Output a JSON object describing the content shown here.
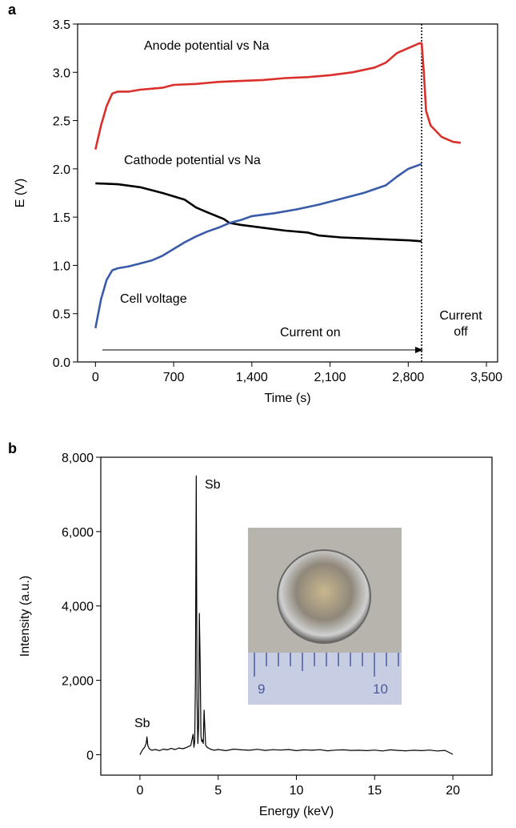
{
  "chart_data": [
    {
      "type": "line",
      "panel": "a",
      "xlabel": "Time (s)",
      "ylabel": "E (V)",
      "xlim": [
        -160,
        3600
      ],
      "ylim": [
        0,
        3.5
      ],
      "xticks": [
        0,
        700,
        {
          "value": 1400,
          "label": "1,400"
        },
        {
          "value": 2100,
          "label": "2,100"
        },
        {
          "value": 2800,
          "label": "2,800"
        },
        {
          "value": 3500,
          "label": "3,500"
        }
      ],
      "yticks": [
        {
          "value": 0,
          "label": "0.0"
        },
        0.5,
        {
          "value": 1,
          "label": "1.0"
        },
        1.5,
        {
          "value": 2,
          "label": "2.0"
        },
        2.5,
        {
          "value": 3,
          "label": "3.0"
        },
        3.5
      ],
      "vline_x": 2920,
      "annotations": [
        "Current on",
        "Current off"
      ],
      "series": [
        {
          "name": "Anode potential vs Na",
          "color": "#d9302b",
          "x": [
            0,
            50,
            100,
            150,
            200,
            300,
            400,
            500,
            600,
            700,
            900,
            1100,
            1300,
            1500,
            1700,
            1900,
            2100,
            2300,
            2500,
            2600,
            2700,
            2800,
            2900,
            2920,
            2940,
            2960,
            3000,
            3100,
            3200,
            3270
          ],
          "values": [
            2.2,
            2.45,
            2.65,
            2.78,
            2.8,
            2.8,
            2.82,
            2.83,
            2.84,
            2.87,
            2.88,
            2.9,
            2.91,
            2.92,
            2.94,
            2.95,
            2.97,
            3.0,
            3.05,
            3.1,
            3.2,
            3.25,
            3.3,
            3.3,
            3.0,
            2.6,
            2.45,
            2.33,
            2.28,
            2.27
          ]
        },
        {
          "name": "Cathode potential vs Na",
          "color": "#000000",
          "x": [
            0,
            200,
            400,
            600,
            800,
            900,
            1000,
            1150,
            1200,
            1300,
            1500,
            1700,
            1900,
            2000,
            2200,
            2400,
            2600,
            2800,
            2920
          ],
          "values": [
            1.85,
            1.84,
            1.81,
            1.75,
            1.68,
            1.6,
            1.55,
            1.48,
            1.44,
            1.42,
            1.39,
            1.36,
            1.34,
            1.31,
            1.29,
            1.28,
            1.27,
            1.26,
            1.25
          ]
        },
        {
          "name": "Cell voltage",
          "color": "#3a5ba8",
          "x": [
            0,
            50,
            100,
            150,
            200,
            300,
            400,
            500,
            600,
            700,
            800,
            900,
            1000,
            1100,
            1200,
            1300,
            1400,
            1600,
            1800,
            2000,
            2200,
            2400,
            2600,
            2700,
            2800,
            2920
          ],
          "values": [
            0.35,
            0.65,
            0.85,
            0.95,
            0.97,
            0.99,
            1.02,
            1.05,
            1.1,
            1.17,
            1.24,
            1.3,
            1.35,
            1.39,
            1.44,
            1.47,
            1.51,
            1.54,
            1.58,
            1.63,
            1.69,
            1.75,
            1.83,
            1.92,
            2.0,
            2.05
          ]
        }
      ]
    },
    {
      "type": "line",
      "panel": "b",
      "xlabel": "Energy (keV)",
      "ylabel": "Intensity (a.u.)",
      "xlim": [
        -2.5,
        22.5
      ],
      "ylim": [
        -550,
        8000
      ],
      "xticks": [
        0,
        5,
        10,
        15,
        20
      ],
      "yticks": [
        0,
        {
          "value": 2000,
          "label": "2,000"
        },
        {
          "value": 4000,
          "label": "4,000"
        },
        {
          "value": 6000,
          "label": "6,000"
        },
        {
          "value": 8000,
          "label": "8,000"
        }
      ],
      "annotations": [
        "Sb",
        "Sb"
      ],
      "inset_ruler_labels": [
        "9",
        "10"
      ],
      "series": [
        {
          "color": "#000000",
          "x": [
            0,
            0.1,
            0.2,
            0.3,
            0.4,
            0.45,
            0.5,
            0.6,
            0.75,
            1,
            1.25,
            1.5,
            1.75,
            2,
            2.25,
            2.5,
            2.75,
            3,
            3.25,
            3.4,
            3.45,
            3.5,
            3.55,
            3.6,
            3.65,
            3.7,
            3.75,
            3.8,
            3.85,
            3.9,
            3.95,
            4.0,
            4.05,
            4.1,
            4.15,
            4.2,
            4.3,
            4.5,
            4.75,
            5,
            5.5,
            6,
            6.5,
            7,
            7.5,
            8,
            8.5,
            9,
            9.5,
            10,
            10.5,
            11,
            11.5,
            12,
            12.5,
            13,
            13.5,
            14,
            14.5,
            15,
            15.5,
            16,
            16.5,
            17,
            17.5,
            18,
            18.5,
            19,
            19.5,
            20
          ],
          "values": [
            0,
            80,
            150,
            200,
            300,
            480,
            250,
            160,
            120,
            140,
            110,
            150,
            130,
            170,
            140,
            180,
            160,
            200,
            250,
            550,
            200,
            350,
            2000,
            7500,
            1500,
            300,
            800,
            3800,
            2500,
            500,
            350,
            400,
            300,
            1200,
            700,
            250,
            200,
            150,
            120,
            140,
            110,
            150,
            130,
            120,
            145,
            115,
            135,
            125,
            140,
            110,
            130,
            120,
            135,
            105,
            125,
            130,
            115,
            120,
            110,
            125,
            100,
            130,
            115,
            105,
            120,
            110,
            125,
            100,
            115,
            10
          ]
        }
      ]
    }
  ]
}
